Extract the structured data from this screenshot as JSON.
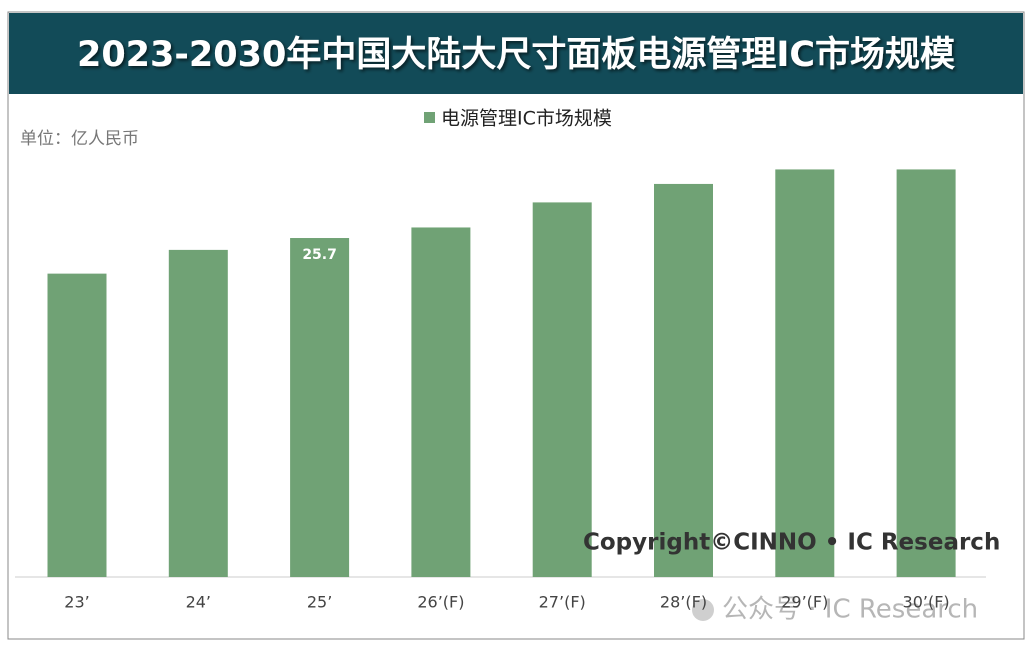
{
  "chart_data": {
    "type": "bar",
    "title": "2023-2030年中国大陆大尺寸面板电源管理IC市场规模",
    "unit_label": "单位：亿人民币",
    "categories": [
      "23’",
      "24’",
      "25’",
      "26’(F)",
      "27’(F)",
      "28’(F)",
      "29’(F)",
      "30’(F)"
    ],
    "series": [
      {
        "name": "电源管理IC市场规模",
        "color": "#70a275",
        "values": [
          23.0,
          24.8,
          25.7,
          26.5,
          28.4,
          29.8,
          30.9,
          30.9
        ]
      }
    ],
    "annotations": [
      "Copyright©CINNO • IC Research",
      "公众号 · IC Research"
    ]
  }
}
